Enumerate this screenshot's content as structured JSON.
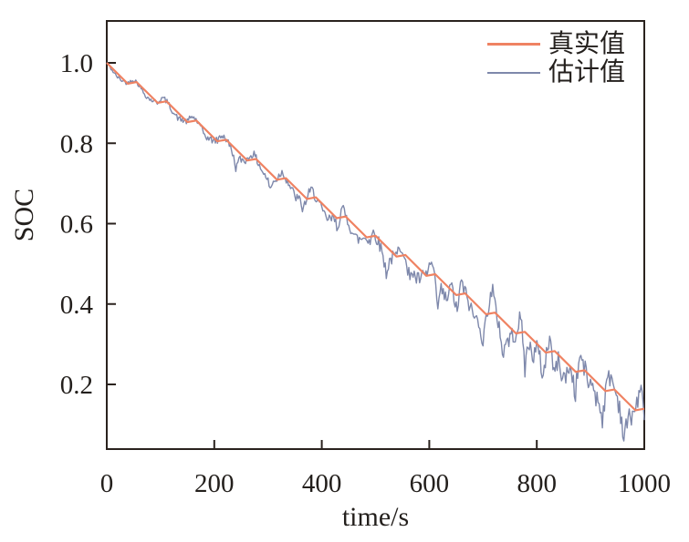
{
  "figure": {
    "background": "#ffffff",
    "border_color": "#2a221e",
    "text_color": "#231f1c"
  },
  "axes": {
    "xlabel": "time/s",
    "ylabel": "SOC"
  },
  "chart_data": {
    "type": "line",
    "title": "",
    "xlabel": "time/s",
    "ylabel": "SOC",
    "xlim": [
      0,
      1000
    ],
    "ylim": [
      0.05,
      1.05
    ],
    "xticks": [
      0,
      200,
      400,
      600,
      800,
      1000
    ],
    "xtick_labels": [
      "0",
      "200",
      "400",
      "600",
      "800",
      "1000"
    ],
    "yticks": [
      1.0,
      0.8,
      0.6,
      0.4,
      0.2
    ],
    "ytick_labels": [
      "1.0",
      "0.8",
      "0.6",
      "0.4",
      "0.2"
    ],
    "grid": false,
    "legend_position": "top-right-inside",
    "series": [
      {
        "name": "真实值",
        "role": "true-value",
        "color": "#EF8262",
        "stroke_width": 2.2,
        "profile": {
          "description": "pulsed-discharge SOC staircase: ramp down during discharge, small flat recovery at rest",
          "start_soc": 1.0,
          "end_soc": 0.14,
          "cycles": 18,
          "period_s": 55.556,
          "discharge_s": 39,
          "drop_per_cycle": 0.0518,
          "rest_recovery": 0.004
        }
      },
      {
        "name": "估计值",
        "role": "estimated-value",
        "color": "#7E88AB",
        "stroke_width": 1.4,
        "noise": {
          "seed": 42,
          "sample_step_s": 2,
          "base_amp": 0.008,
          "amp_growth_per_s": 4.2e-05,
          "rest_overshoot_factor": 0.75,
          "hf_noise_base": 0.004,
          "hf_noise_growth_per_s": 2.5e-05,
          "spikes": [
            {
              "t": 240,
              "depth": 0.028
            },
            {
              "t": 305,
              "depth": 0.024
            },
            {
              "t": 365,
              "depth": 0.026
            },
            {
              "t": 430,
              "depth": 0.03
            },
            {
              "t": 490,
              "depth": 0.032
            },
            {
              "t": 520,
              "depth": 0.035
            },
            {
              "t": 560,
              "depth": 0.04
            },
            {
              "t": 615,
              "depth": 0.075
            },
            {
              "t": 640,
              "depth": -0.03
            },
            {
              "t": 652,
              "depth": 0.05
            },
            {
              "t": 700,
              "depth": 0.07
            },
            {
              "t": 718,
              "depth": -0.035
            },
            {
              "t": 737,
              "depth": 0.05
            },
            {
              "t": 778,
              "depth": 0.09
            },
            {
              "t": 800,
              "depth": -0.03
            },
            {
              "t": 812,
              "depth": 0.055
            },
            {
              "t": 832,
              "depth": 0.07
            },
            {
              "t": 860,
              "depth": -0.03
            },
            {
              "t": 872,
              "depth": 0.055
            },
            {
              "t": 905,
              "depth": -0.035
            },
            {
              "t": 922,
              "depth": 0.06
            },
            {
              "t": 962,
              "depth": 0.05
            }
          ]
        }
      }
    ]
  }
}
